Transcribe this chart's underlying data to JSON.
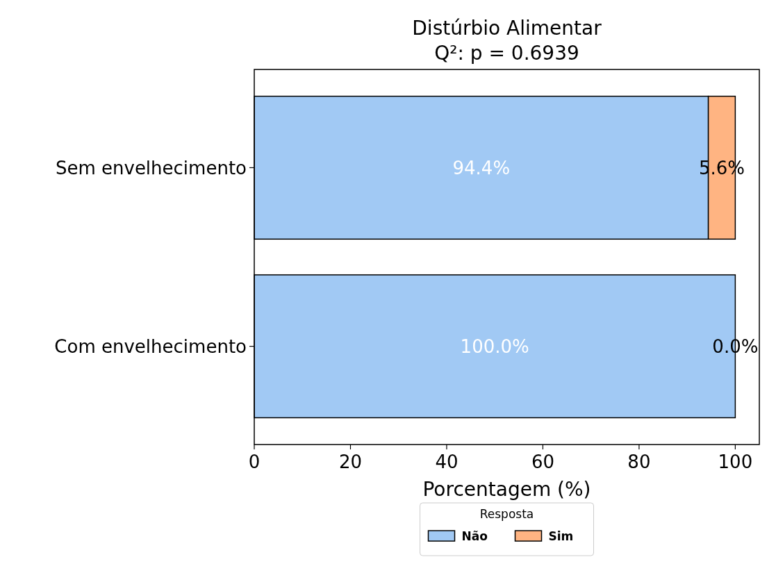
{
  "chart_data": {
    "type": "bar",
    "orientation": "horizontal",
    "stacked": true,
    "title": "Distúrbio Alimentar",
    "subtitle": "Q²: p = 0.6939",
    "xlabel": "Porcentagem (%)",
    "categories": [
      "Sem envelhecimento",
      "Com envelhecimento"
    ],
    "series": [
      {
        "name": "Não",
        "color": "#a1c9f4",
        "values": [
          94.4,
          100
        ],
        "value_labels": [
          "94.4%",
          "100.0%"
        ]
      },
      {
        "name": "Sim",
        "color": "#ffb482",
        "values": [
          5.6,
          0
        ],
        "value_labels": [
          "5.6%",
          "0.0%"
        ]
      }
    ],
    "xlim": [
      0,
      105
    ],
    "xticks": [
      0,
      20,
      40,
      60,
      80,
      100
    ],
    "grid": false,
    "legend": "bottom",
    "legend_title": "Resposta"
  }
}
